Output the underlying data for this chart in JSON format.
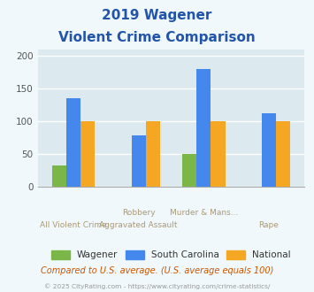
{
  "title_line1": "2019 Wagener",
  "title_line2": "Violent Crime Comparison",
  "title_color": "#2255aa",
  "categories": [
    "All Violent Crime",
    "Robbery\nAggravated Assault",
    "Murder & Mans...",
    "Rape"
  ],
  "xtick_labels_top": [
    "",
    "Robbery",
    "Murder & Mans...",
    ""
  ],
  "xtick_labels_bottom": [
    "All Violent Crime",
    "Aggravated Assault",
    "",
    "Rape"
  ],
  "wagener": [
    33,
    0,
    50,
    0
  ],
  "south_carolina": [
    135,
    79,
    180,
    113
  ],
  "national": [
    100,
    100,
    100,
    100
  ],
  "wagener_color": "#7ab648",
  "sc_color": "#4488ee",
  "national_color": "#f5a623",
  "ylim": [
    0,
    210
  ],
  "yticks": [
    0,
    50,
    100,
    150,
    200
  ],
  "bg_color": "#dce9ef",
  "fig_bg": "#f0f8fb",
  "grid_color": "#ffffff",
  "footer_text": "Compared to U.S. average. (U.S. average equals 100)",
  "footer_color": "#cc5500",
  "copyright_text": "© 2025 CityRating.com - https://www.cityrating.com/crime-statistics/",
  "copyright_color": "#999999",
  "bar_width": 0.22
}
